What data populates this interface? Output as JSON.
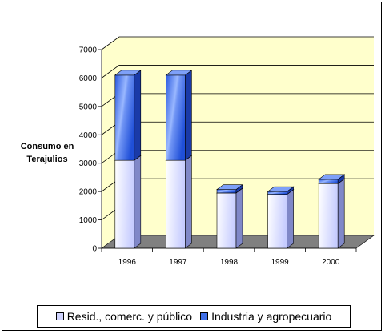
{
  "chart_data": {
    "type": "bar",
    "stacked": true,
    "three_d": true,
    "categories": [
      "1996",
      "1997",
      "1998",
      "1999",
      "2000"
    ],
    "series": [
      {
        "name": "Resid., comerc. y público",
        "values": [
          3100,
          3100,
          1950,
          1900,
          2280
        ],
        "color": "#d0d4ff"
      },
      {
        "name": "Industria y agropecuario",
        "values": [
          3000,
          3000,
          120,
          100,
          150
        ],
        "color": "#3f6fe8"
      }
    ],
    "y_ticks": [
      "0",
      "1000",
      "2000",
      "3000",
      "4000",
      "5000",
      "6000",
      "7000"
    ],
    "ylim": [
      0,
      7000
    ],
    "ylabel": "Consumo en Terajulios",
    "grid": true,
    "legend_position": "bottom",
    "wall_color": "#ffffcc",
    "floor_color": "#808080"
  }
}
